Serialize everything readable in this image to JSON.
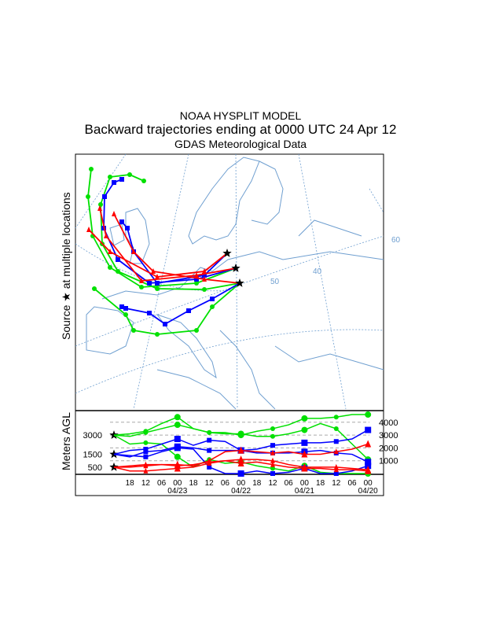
{
  "header": {
    "line1": "NOAA HYSPLIT MODEL",
    "line2": "Backward trajectories ending at 0000 UTC 24 Apr 12",
    "line3": "GDAS Meteorological Data"
  },
  "map": {
    "side_label": "Source ★ at multiple locations",
    "grid_labels": [
      "50",
      "40",
      "60"
    ]
  },
  "colors": {
    "red": "#ff0000",
    "blue": "#0000ff",
    "green": "#00e000",
    "coast": "#6f9fd0"
  },
  "chart_data": {
    "type": "line",
    "ylabel": "Meters AGL",
    "start_heights": [
      "3000",
      "1500",
      "500"
    ],
    "right_ticks": [
      "4000",
      "3000",
      "2000",
      "1000"
    ],
    "ylim": [
      0,
      4800
    ],
    "x_tick_labels": [
      "18",
      "12",
      "06",
      "00",
      "18",
      "12",
      "06",
      "00",
      "18",
      "12",
      "06",
      "00",
      "18",
      "12",
      "06",
      "00"
    ],
    "date_labels": [
      "04/23",
      "04/22",
      "04/21",
      "04/20"
    ],
    "x_hours_back": [
      0,
      6,
      12,
      18,
      24,
      30,
      36,
      42,
      48,
      54,
      60,
      66,
      72,
      78,
      84,
      90,
      96
    ],
    "series": [
      {
        "name": "green-3000-a",
        "color": "green",
        "marker": "circle",
        "values": [
          3000,
          3100,
          3300,
          3900,
          4400,
          3500,
          3200,
          3200,
          3000,
          3300,
          3500,
          3800,
          4300,
          4300,
          4400,
          4600,
          4600
        ]
      },
      {
        "name": "green-3000-b",
        "color": "green",
        "marker": "circle",
        "values": [
          3000,
          2900,
          3200,
          3500,
          3800,
          3500,
          3200,
          3100,
          3100,
          2900,
          2900,
          3100,
          3400,
          3900,
          3500,
          2300,
          1100
        ]
      },
      {
        "name": "green-3000-c",
        "color": "green",
        "marker": "circle",
        "values": [
          3000,
          2300,
          2400,
          2300,
          1300,
          500,
          1100,
          800,
          900,
          600,
          400,
          200,
          600,
          100,
          0,
          0,
          0
        ]
      },
      {
        "name": "blue-1500-a",
        "color": "blue",
        "marker": "square",
        "values": [
          1500,
          1800,
          1900,
          2300,
          2700,
          2200,
          2600,
          2500,
          1800,
          1900,
          2200,
          2300,
          2400,
          2400,
          2500,
          2700,
          3400
        ]
      },
      {
        "name": "blue-1500-b",
        "color": "blue",
        "marker": "square",
        "values": [
          1500,
          1300,
          1700,
          1800,
          2100,
          2000,
          1800,
          1800,
          1800,
          1600,
          1600,
          1600,
          1700,
          1800,
          1600,
          1500,
          900
        ]
      },
      {
        "name": "blue-1500-c",
        "color": "blue",
        "marker": "square",
        "values": [
          1500,
          1400,
          1300,
          1700,
          2000,
          1900,
          500,
          0,
          0,
          200,
          0,
          100,
          400,
          0,
          0,
          200,
          600
        ]
      },
      {
        "name": "red-500-a",
        "color": "red",
        "marker": "triangle",
        "values": [
          500,
          500,
          600,
          700,
          700,
          600,
          1000,
          1700,
          1800,
          1700,
          1600,
          1700,
          1500,
          1500,
          1700,
          1900,
          2300
        ]
      },
      {
        "name": "red-500-b",
        "color": "red",
        "marker": "triangle",
        "values": [
          500,
          600,
          700,
          700,
          600,
          700,
          900,
          1000,
          1100,
          1100,
          1000,
          700,
          500,
          500,
          500,
          400,
          300
        ]
      },
      {
        "name": "red-500-c",
        "color": "red",
        "marker": "triangle",
        "values": [
          500,
          200,
          200,
          300,
          400,
          500,
          800,
          1000,
          800,
          900,
          700,
          500,
          400,
          400,
          300,
          300,
          200
        ]
      }
    ]
  }
}
